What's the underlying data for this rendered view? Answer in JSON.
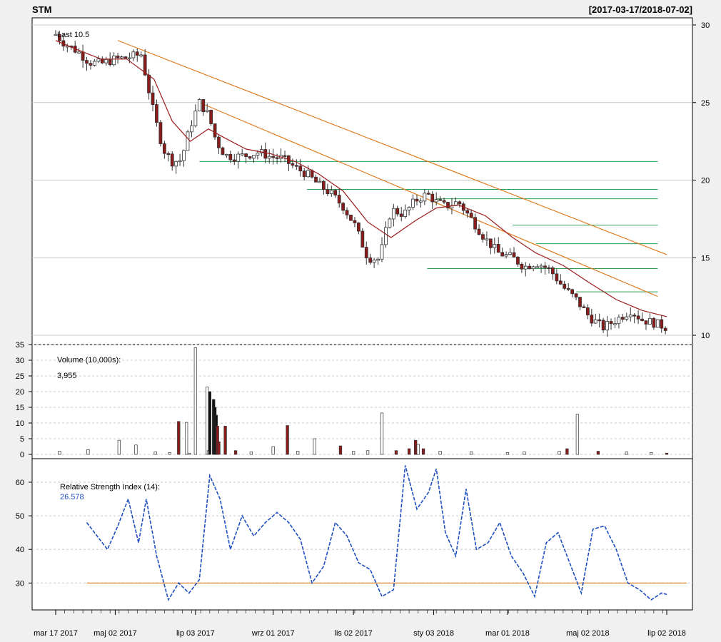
{
  "header": {
    "symbol": "STM",
    "range": "[2017-03-17/2018-07-02]"
  },
  "x_axis": {
    "ticks": [
      {
        "date": "2017-03-17",
        "label": "mar 17 2017"
      },
      {
        "date": "2017-05-02",
        "label": "maj 02 2017"
      },
      {
        "date": "2017-07-03",
        "label": "lip 03 2017"
      },
      {
        "date": "2017-09-01",
        "label": "wrz 01 2017"
      },
      {
        "date": "2017-11-02",
        "label": "lis 02 2017"
      },
      {
        "date": "2018-01-03",
        "label": "sty 03 2018"
      },
      {
        "date": "2018-03-01",
        "label": "mar 01 2018"
      },
      {
        "date": "2018-05-02",
        "label": "maj 02 2018"
      },
      {
        "date": "2018-07-02",
        "label": "lip 02 2018"
      }
    ]
  },
  "chart_data": [
    {
      "type": "candlestick",
      "ylim": [
        10,
        30
      ],
      "yticks": [
        10,
        15,
        20,
        25,
        30
      ],
      "last_label": "Last 10.5",
      "close_series": {
        "x": [
          "2017-03-17",
          "2017-03-24",
          "2017-04-03",
          "2017-04-12",
          "2017-04-21",
          "2017-05-02",
          "2017-05-11",
          "2017-05-22",
          "2017-06-01",
          "2017-06-08",
          "2017-06-15",
          "2017-06-22",
          "2017-06-29",
          "2017-07-06",
          "2017-07-13",
          "2017-07-19",
          "2017-07-26",
          "2017-08-02",
          "2017-08-11",
          "2017-08-21",
          "2017-08-30",
          "2017-09-08",
          "2017-09-18",
          "2017-09-27",
          "2017-10-06",
          "2017-10-16",
          "2017-10-25",
          "2017-11-03",
          "2017-11-13",
          "2017-11-22",
          "2017-12-01",
          "2017-12-11",
          "2017-12-20",
          "2017-12-29",
          "2018-01-05",
          "2018-01-12",
          "2018-01-22",
          "2018-02-01",
          "2018-02-12",
          "2018-02-22",
          "2018-03-05",
          "2018-03-14",
          "2018-03-23",
          "2018-04-03",
          "2018-04-13",
          "2018-04-23",
          "2018-05-03",
          "2018-05-14",
          "2018-05-24",
          "2018-06-04",
          "2018-06-13",
          "2018-06-22",
          "2018-07-02"
        ],
        "values": [
          29.4,
          28.8,
          28.3,
          27.6,
          27.5,
          27.8,
          27.9,
          28.1,
          24.2,
          22.0,
          21.2,
          21.3,
          23.5,
          25.0,
          24.2,
          22.5,
          21.6,
          21.5,
          21.6,
          21.8,
          21.5,
          21.4,
          20.8,
          20.4,
          19.7,
          19.1,
          18.3,
          17.1,
          15.0,
          14.9,
          18.1,
          17.8,
          18.7,
          19.1,
          18.6,
          18.3,
          18.6,
          17.5,
          16.2,
          15.3,
          15.0,
          14.4,
          14.7,
          14.2,
          13.1,
          12.3,
          11.2,
          10.5,
          11.0,
          11.6,
          11.0,
          10.8,
          10.5
        ]
      },
      "ma_series": {
        "x": [
          "2017-03-17",
          "2017-04-03",
          "2017-04-21",
          "2017-05-11",
          "2017-06-01",
          "2017-06-15",
          "2017-06-29",
          "2017-07-13",
          "2017-07-26",
          "2017-08-11",
          "2017-08-30",
          "2017-09-18",
          "2017-10-06",
          "2017-10-25",
          "2017-11-13",
          "2017-12-01",
          "2017-12-20",
          "2018-01-05",
          "2018-01-22",
          "2018-02-12",
          "2018-03-05",
          "2018-03-23",
          "2018-04-13",
          "2018-05-03",
          "2018-05-24",
          "2018-06-13",
          "2018-07-02"
        ],
        "values": [
          29.0,
          28.4,
          27.8,
          27.8,
          26.5,
          23.8,
          22.5,
          23.3,
          22.7,
          22.0,
          21.7,
          21.2,
          20.4,
          19.3,
          17.3,
          16.3,
          17.4,
          18.2,
          18.4,
          17.7,
          16.3,
          15.3,
          14.5,
          13.4,
          12.3,
          11.6,
          11.2
        ]
      },
      "trendlines": [
        {
          "x": [
            "2017-05-04",
            "2018-07-02"
          ],
          "values": [
            29.0,
            15.2
          ]
        },
        {
          "x": [
            "2017-07-06",
            "2018-06-25"
          ],
          "values": [
            25.0,
            12.5
          ]
        }
      ],
      "levels": [
        {
          "from": "2017-07-06",
          "to": "2018-06-25",
          "value": 21.2
        },
        {
          "from": "2017-09-27",
          "to": "2018-06-25",
          "value": 19.4
        },
        {
          "from": "2018-01-05",
          "to": "2018-06-25",
          "value": 18.8
        },
        {
          "from": "2018-03-05",
          "to": "2018-06-25",
          "value": 17.1
        },
        {
          "from": "2018-03-23",
          "to": "2018-06-25",
          "value": 15.9
        },
        {
          "from": "2017-12-29",
          "to": "2018-06-25",
          "value": 14.3
        },
        {
          "from": "2018-04-23",
          "to": "2018-06-25",
          "value": 12.8
        }
      ]
    },
    {
      "type": "bar",
      "title": "Volume (10,000s):",
      "last_label": "3,955",
      "ylim": [
        0,
        35
      ],
      "yticks": [
        0,
        5,
        10,
        15,
        20,
        25,
        30,
        35
      ],
      "x": [
        "2017-03-20",
        "2017-04-11",
        "2017-05-05",
        "2017-05-18",
        "2017-06-02",
        "2017-06-13",
        "2017-06-20",
        "2017-06-26",
        "2017-06-28",
        "2017-07-03",
        "2017-07-12",
        "2017-07-13",
        "2017-07-14",
        "2017-07-17",
        "2017-07-18",
        "2017-07-19",
        "2017-07-20",
        "2017-07-21",
        "2017-07-26",
        "2017-08-03",
        "2017-08-15",
        "2017-09-01",
        "2017-09-12",
        "2017-09-20",
        "2017-10-03",
        "2017-10-23",
        "2017-11-02",
        "2017-11-13",
        "2017-11-24",
        "2017-12-05",
        "2017-12-15",
        "2017-12-20",
        "2017-12-21",
        "2017-12-22",
        "2017-12-26",
        "2018-01-08",
        "2018-02-01",
        "2018-03-01",
        "2018-03-14",
        "2018-04-10",
        "2018-04-16",
        "2018-04-24",
        "2018-05-10",
        "2018-06-01",
        "2018-06-20",
        "2018-07-02"
      ],
      "values": [
        1.0,
        1.5,
        4.5,
        3.0,
        0.8,
        0.6,
        10.5,
        10.2,
        0.4,
        34.0,
        21.5,
        1.2,
        20.0,
        17.5,
        15.0,
        12.5,
        9.0,
        4.0,
        9.0,
        1.2,
        0.8,
        2.5,
        9.2,
        1.0,
        5.0,
        2.7,
        1.0,
        1.2,
        13.2,
        1.2,
        1.8,
        4.5,
        2.6,
        3.2,
        1.8,
        1.0,
        0.8,
        0.6,
        0.8,
        1.0,
        1.8,
        12.8,
        1.0,
        0.8,
        0.6,
        0.4
      ],
      "down": [
        0,
        0,
        0,
        0,
        0,
        0,
        1,
        0,
        0,
        0,
        0,
        0,
        1,
        1,
        1,
        1,
        1,
        1,
        1,
        1,
        0,
        0,
        1,
        0,
        0,
        1,
        0,
        0,
        0,
        1,
        1,
        1,
        1,
        0,
        1,
        0,
        0,
        0,
        0,
        0,
        1,
        0,
        1,
        0,
        0,
        1
      ]
    },
    {
      "type": "line",
      "title": "Relative Strength Index (14):",
      "last_label": "26.578",
      "ylim": [
        22,
        67
      ],
      "yticks": [
        30,
        40,
        50,
        60
      ],
      "reference_level": 30,
      "x": [
        "2017-04-10",
        "2017-04-18",
        "2017-04-26",
        "2017-05-04",
        "2017-05-12",
        "2017-05-20",
        "2017-05-26",
        "2017-06-03",
        "2017-06-12",
        "2017-06-20",
        "2017-06-28",
        "2017-07-06",
        "2017-07-14",
        "2017-07-22",
        "2017-07-30",
        "2017-08-08",
        "2017-08-17",
        "2017-08-26",
        "2017-09-04",
        "2017-09-13",
        "2017-09-22",
        "2017-10-01",
        "2017-10-10",
        "2017-10-19",
        "2017-10-28",
        "2017-11-06",
        "2017-11-15",
        "2017-11-24",
        "2017-12-03",
        "2017-12-12",
        "2017-12-21",
        "2017-12-30",
        "2018-01-05",
        "2018-01-12",
        "2018-01-20",
        "2018-01-28",
        "2018-02-05",
        "2018-02-14",
        "2018-02-23",
        "2018-03-04",
        "2018-03-13",
        "2018-03-22",
        "2018-03-31",
        "2018-04-09",
        "2018-04-18",
        "2018-04-27",
        "2018-05-06",
        "2018-05-15",
        "2018-05-24",
        "2018-06-02",
        "2018-06-11",
        "2018-06-20",
        "2018-06-28",
        "2018-07-02"
      ],
      "values": [
        48,
        44,
        40,
        47,
        55,
        42,
        55,
        38,
        25,
        30,
        27,
        31,
        62,
        55,
        40,
        50,
        44,
        48,
        51,
        48,
        43,
        30,
        35,
        48,
        44,
        36,
        34,
        26,
        28,
        65,
        52,
        57,
        64,
        45,
        38,
        58,
        40,
        42,
        48,
        38,
        33,
        26,
        42,
        45,
        36,
        27,
        46,
        47,
        40,
        30,
        28,
        25,
        27,
        26.6
      ]
    }
  ]
}
